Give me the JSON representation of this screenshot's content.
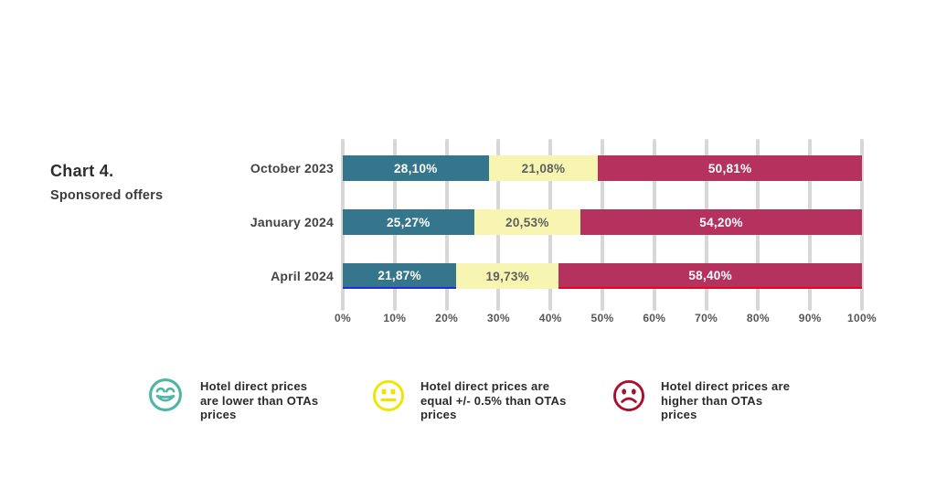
{
  "header": {
    "title": "Chart 4.",
    "subtitle": "Sponsored offers"
  },
  "chart_data": {
    "type": "bar",
    "orientation": "horizontal",
    "stacked": true,
    "unit": "%",
    "title": "Chart 4.",
    "subtitle": "Sponsored offers",
    "categories": [
      "October 2023",
      "January 2024",
      "April 2024"
    ],
    "series": [
      {
        "name": "Hotel direct prices are lower than OTAs prices",
        "color": "#35768C",
        "values": [
          28.1,
          25.27,
          21.87
        ],
        "labels": [
          "28,10%",
          "25,27%",
          "21,87%"
        ]
      },
      {
        "name": "Hotel direct prices are equal +/- 0.5% than OTAs prices",
        "color": "#F8F5B2",
        "values": [
          21.08,
          20.53,
          19.73
        ],
        "labels": [
          "21,08%",
          "20,53%",
          "19,73%"
        ]
      },
      {
        "name": "Hotel direct prices are higher than OTAs prices",
        "color": "#B5325F",
        "values": [
          50.81,
          54.2,
          58.4
        ],
        "labels": [
          "50,81%",
          "54,20%",
          "58,40%"
        ]
      }
    ],
    "x_axis": {
      "min": 0,
      "max": 100,
      "ticks": [
        "0%",
        "10%",
        "20%",
        "30%",
        "40%",
        "50%",
        "60%",
        "70%",
        "80%",
        "90%",
        "100%"
      ]
    },
    "gridlines": "vertical",
    "legend_position": "bottom"
  },
  "colors": {
    "bar_teal": "#35768C",
    "bar_yellow": "#F8F5B2",
    "bar_crimson": "#B5325F",
    "underline_blue": "#2026F2",
    "underline_red": "#F2001A",
    "gridline": "#D7D7D7",
    "legend_teal": "#4FB6A5",
    "legend_yellow": "#F1E500",
    "legend_red": "#A81230"
  },
  "legend": {
    "items": [
      {
        "icon": "happy-face-icon",
        "lines": [
          "Hotel direct prices",
          "are lower than OTAs",
          "prices"
        ]
      },
      {
        "icon": "neutral-face-icon",
        "lines": [
          "Hotel direct prices are",
          "equal +/- 0.5% than OTAs",
          "prices"
        ]
      },
      {
        "icon": "sad-face-icon",
        "lines": [
          "Hotel direct prices are",
          "higher than OTAs",
          "prices"
        ]
      }
    ]
  }
}
